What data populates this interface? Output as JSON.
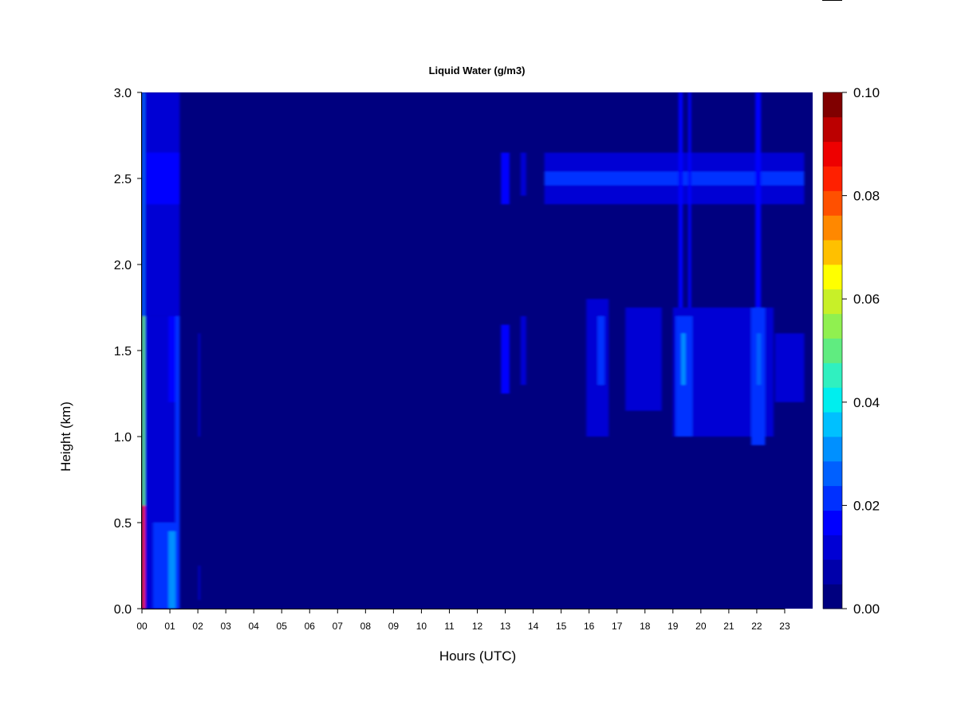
{
  "chart_data": {
    "type": "heatmap",
    "title": "Liquid Water (g/m3)",
    "xlabel": "Hours (UTC)",
    "ylabel": "Height (km)",
    "xlim": [
      0,
      24
    ],
    "ylim": [
      0,
      3
    ],
    "x_ticks": [
      "00",
      "01",
      "02",
      "03",
      "04",
      "05",
      "06",
      "07",
      "08",
      "09",
      "10",
      "11",
      "12",
      "13",
      "14",
      "15",
      "16",
      "17",
      "18",
      "19",
      "20",
      "21",
      "22",
      "23"
    ],
    "y_ticks": [
      "0.0",
      "0.5",
      "1.0",
      "1.5",
      "2.0",
      "2.5",
      "3.0"
    ],
    "colorbar": {
      "min": 0,
      "max": 0.1,
      "ticks": [
        "0.00",
        "0.02",
        "0.04",
        "0.06",
        "0.08",
        "0.10"
      ],
      "colors": [
        "#00007f",
        "#0000aa",
        "#0000d4",
        "#0000ff",
        "#0030ff",
        "#0060ff",
        "#0090ff",
        "#00c0ff",
        "#00eeee",
        "#30f0c0",
        "#60ec80",
        "#90f050",
        "#c8f028",
        "#ffff00",
        "#ffc000",
        "#ff8800",
        "#ff5000",
        "#ff2000",
        "#ee0000",
        "#bb0000",
        "#800000"
      ],
      "background_value": 0.002
    },
    "features": [
      {
        "x": [
          0.0,
          0.1
        ],
        "y": [
          0.0,
          0.6
        ],
        "value": 0.085
      },
      {
        "x": [
          0.0,
          0.12
        ],
        "y": [
          0.6,
          1.7
        ],
        "value": 0.05
      },
      {
        "x": [
          0.0,
          0.15
        ],
        "y": [
          1.7,
          3.0
        ],
        "value": 0.025
      },
      {
        "x": [
          0.1,
          0.3
        ],
        "y": [
          0.0,
          1.7
        ],
        "value": 0.03
      },
      {
        "x": [
          0.1,
          1.35
        ],
        "y": [
          0.0,
          1.7
        ],
        "value": 0.012
      },
      {
        "x": [
          0.1,
          1.35
        ],
        "y": [
          1.7,
          3.0
        ],
        "value": 0.01
      },
      {
        "x": [
          0.4,
          1.35
        ],
        "y": [
          0.0,
          0.5
        ],
        "value": 0.02
      },
      {
        "x": [
          0.95,
          1.2
        ],
        "y": [
          0.0,
          0.45
        ],
        "value": 0.03
      },
      {
        "x": [
          0.95,
          1.25
        ],
        "y": [
          1.2,
          1.7
        ],
        "value": 0.018
      },
      {
        "x": [
          0.15,
          1.35
        ],
        "y": [
          2.35,
          2.65
        ],
        "value": 0.018
      },
      {
        "x": [
          1.2,
          1.35
        ],
        "y": [
          0.5,
          1.7
        ],
        "value": 0.02
      },
      {
        "x": [
          2.02,
          2.08
        ],
        "y": [
          0.05,
          0.25
        ],
        "value": 0.012
      },
      {
        "x": [
          2.02,
          2.08
        ],
        "y": [
          1.0,
          1.6
        ],
        "value": 0.01
      },
      {
        "x": [
          12.85,
          13.15
        ],
        "y": [
          1.25,
          1.65
        ],
        "value": 0.015
      },
      {
        "x": [
          12.85,
          13.15
        ],
        "y": [
          2.35,
          2.65
        ],
        "value": 0.015
      },
      {
        "x": [
          13.55,
          13.75
        ],
        "y": [
          1.3,
          1.7
        ],
        "value": 0.014
      },
      {
        "x": [
          13.55,
          13.75
        ],
        "y": [
          2.4,
          2.65
        ],
        "value": 0.012
      },
      {
        "x": [
          14.4,
          23.7
        ],
        "y": [
          2.35,
          2.65
        ],
        "value": 0.014
      },
      {
        "x": [
          14.4,
          23.7
        ],
        "y": [
          2.46,
          2.54
        ],
        "value": 0.022
      },
      {
        "x": [
          15.9,
          16.7
        ],
        "y": [
          1.0,
          1.8
        ],
        "value": 0.012
      },
      {
        "x": [
          16.3,
          16.55
        ],
        "y": [
          1.3,
          1.7
        ],
        "value": 0.02
      },
      {
        "x": [
          17.3,
          18.6
        ],
        "y": [
          1.15,
          1.75
        ],
        "value": 0.012
      },
      {
        "x": [
          19.0,
          22.6
        ],
        "y": [
          1.0,
          1.75
        ],
        "value": 0.013
      },
      {
        "x": [
          19.1,
          19.7
        ],
        "y": [
          1.0,
          1.7
        ],
        "value": 0.022
      },
      {
        "x": [
          19.3,
          19.45
        ],
        "y": [
          1.3,
          1.6
        ],
        "value": 0.03
      },
      {
        "x": [
          21.8,
          22.3
        ],
        "y": [
          0.95,
          1.75
        ],
        "value": 0.022
      },
      {
        "x": [
          22.0,
          22.15
        ],
        "y": [
          1.3,
          1.6
        ],
        "value": 0.028
      },
      {
        "x": [
          19.2,
          19.35
        ],
        "y": [
          1.75,
          3.0
        ],
        "value": 0.016
      },
      {
        "x": [
          19.55,
          19.65
        ],
        "y": [
          1.75,
          3.0
        ],
        "value": 0.016
      },
      {
        "x": [
          21.95,
          22.15
        ],
        "y": [
          1.75,
          3.0
        ],
        "value": 0.018
      },
      {
        "x": [
          22.65,
          23.7
        ],
        "y": [
          1.2,
          1.6
        ],
        "value": 0.01
      }
    ]
  }
}
